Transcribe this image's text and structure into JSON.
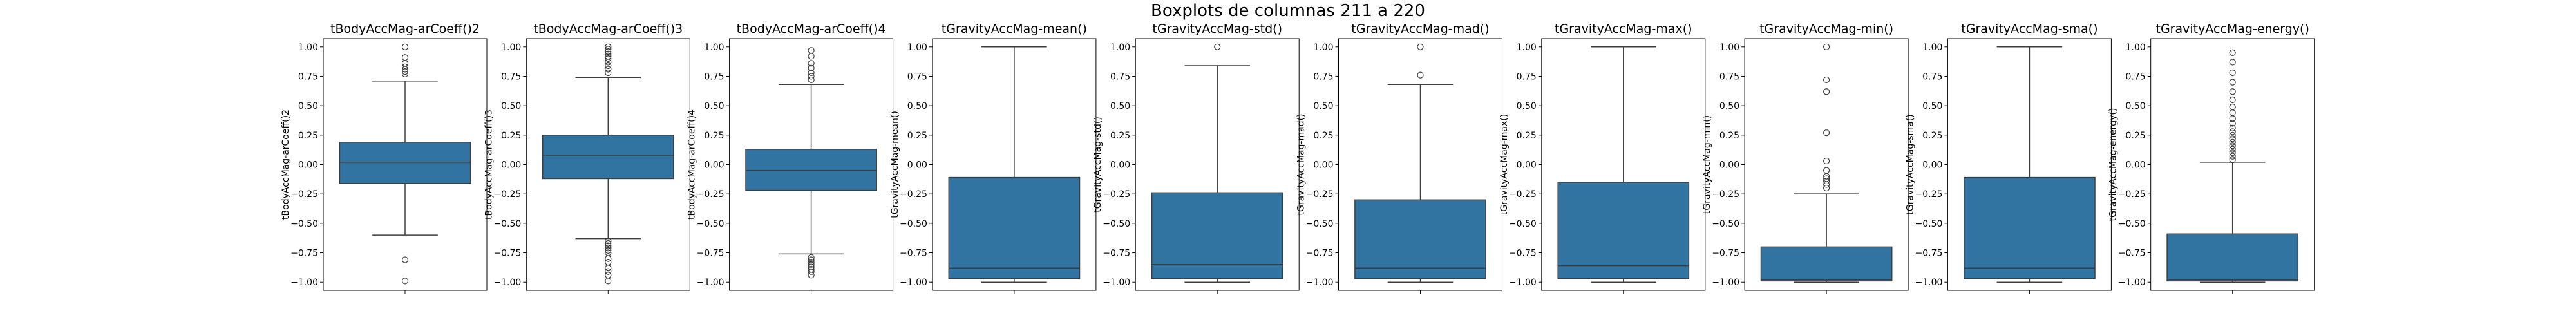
{
  "figure_title": "Boxplots de columnas 211 a 220",
  "colors": {
    "box_fill": "#3274a1",
    "line": "#3d3d3d",
    "frame": "#000000",
    "background": "#ffffff"
  },
  "chart_data": [
    {
      "type": "box",
      "title": "tBodyAccMag-arCoeff()2",
      "ylabel": "tBodyAccMag-arCoeff()2",
      "ylim": [
        -1.07,
        1.07
      ],
      "yticks": [
        -1.0,
        -0.75,
        -0.5,
        -0.25,
        0.0,
        0.25,
        0.5,
        0.75,
        1.0
      ],
      "q1": -0.16,
      "median": 0.02,
      "q3": 0.19,
      "whisker_low": -0.6,
      "whisker_high": 0.71,
      "outliers": [
        -0.81,
        -0.99,
        0.77,
        0.79,
        0.81,
        0.83,
        0.86,
        0.91,
        1.0
      ]
    },
    {
      "type": "box",
      "title": "tBodyAccMag-arCoeff()3",
      "ylabel": "tBodyAccMag-arCoeff()3",
      "ylim": [
        -1.07,
        1.07
      ],
      "yticks": [
        -1.0,
        -0.75,
        -0.5,
        -0.25,
        0.0,
        0.25,
        0.5,
        0.75,
        1.0
      ],
      "q1": -0.12,
      "median": 0.08,
      "q3": 0.25,
      "whisker_low": -0.63,
      "whisker_high": 0.74,
      "outliers": [
        -0.65,
        -0.67,
        -0.69,
        -0.71,
        -0.73,
        -0.75,
        -0.8,
        -0.83,
        -0.88,
        -0.91,
        -0.94,
        -0.99,
        0.78,
        0.81,
        0.84,
        0.87,
        0.9,
        0.92,
        0.94,
        0.96,
        0.98,
        1.0
      ]
    },
    {
      "type": "box",
      "title": "tBodyAccMag-arCoeff()4",
      "ylabel": "tBodyAccMag-arCoeff()4",
      "ylim": [
        -1.07,
        1.07
      ],
      "yticks": [
        -1.0,
        -0.75,
        -0.5,
        -0.25,
        0.0,
        0.25,
        0.5,
        0.75,
        1.0
      ],
      "q1": -0.22,
      "median": -0.05,
      "q3": 0.13,
      "whisker_low": -0.76,
      "whisker_high": 0.68,
      "outliers": [
        -0.79,
        -0.81,
        -0.83,
        -0.85,
        -0.87,
        -0.89,
        -0.91,
        -0.94,
        0.72,
        0.75,
        0.78,
        0.82,
        0.86,
        0.92,
        0.97
      ]
    },
    {
      "type": "box",
      "title": "tGravityAccMag-mean()",
      "ylabel": "tGravityAccMag-mean()",
      "ylim": [
        -1.07,
        1.07
      ],
      "yticks": [
        -1.0,
        -0.75,
        -0.5,
        -0.25,
        0.0,
        0.25,
        0.5,
        0.75,
        1.0
      ],
      "q1": -0.97,
      "median": -0.88,
      "q3": -0.11,
      "whisker_low": -1.0,
      "whisker_high": 1.0,
      "outliers": []
    },
    {
      "type": "box",
      "title": "tGravityAccMag-std()",
      "ylabel": "tGravityAccMag-std()",
      "ylim": [
        -1.07,
        1.07
      ],
      "yticks": [
        -1.0,
        -0.75,
        -0.5,
        -0.25,
        0.0,
        0.25,
        0.5,
        0.75,
        1.0
      ],
      "q1": -0.97,
      "median": -0.85,
      "q3": -0.24,
      "whisker_low": -1.0,
      "whisker_high": 0.84,
      "outliers": [
        1.0
      ]
    },
    {
      "type": "box",
      "title": "tGravityAccMag-mad()",
      "ylabel": "tGravityAccMag-mad()",
      "ylim": [
        -1.07,
        1.07
      ],
      "yticks": [
        -1.0,
        -0.75,
        -0.5,
        -0.25,
        0.0,
        0.25,
        0.5,
        0.75,
        1.0
      ],
      "q1": -0.97,
      "median": -0.88,
      "q3": -0.3,
      "whisker_low": -1.0,
      "whisker_high": 0.68,
      "outliers": [
        0.76,
        1.0
      ]
    },
    {
      "type": "box",
      "title": "tGravityAccMag-max()",
      "ylabel": "tGravityAccMag-max()",
      "ylim": [
        -1.07,
        1.07
      ],
      "yticks": [
        -1.0,
        -0.75,
        -0.5,
        -0.25,
        0.0,
        0.25,
        0.5,
        0.75,
        1.0
      ],
      "q1": -0.97,
      "median": -0.86,
      "q3": -0.15,
      "whisker_low": -1.0,
      "whisker_high": 1.0,
      "outliers": []
    },
    {
      "type": "box",
      "title": "tGravityAccMag-min()",
      "ylabel": "tGravityAccMag-min()",
      "ylim": [
        -1.07,
        1.07
      ],
      "yticks": [
        -1.0,
        -0.75,
        -0.5,
        -0.25,
        0.0,
        0.25,
        0.5,
        0.75,
        1.0
      ],
      "q1": -0.99,
      "median": -0.98,
      "q3": -0.7,
      "whisker_low": -1.0,
      "whisker_high": -0.25,
      "outliers": [
        -0.2,
        -0.17,
        -0.14,
        -0.12,
        -0.1,
        -0.05,
        0.03,
        0.27,
        0.62,
        0.72,
        1.0
      ]
    },
    {
      "type": "box",
      "title": "tGravityAccMag-sma()",
      "ylabel": "tGravityAccMag-sma()",
      "ylim": [
        -1.07,
        1.07
      ],
      "yticks": [
        -1.0,
        -0.75,
        -0.5,
        -0.25,
        0.0,
        0.25,
        0.5,
        0.75,
        1.0
      ],
      "q1": -0.97,
      "median": -0.88,
      "q3": -0.11,
      "whisker_low": -1.0,
      "whisker_high": 1.0,
      "outliers": []
    },
    {
      "type": "box",
      "title": "tGravityAccMag-energy()",
      "ylabel": "tGravityAccMag-energy()",
      "ylim": [
        -1.07,
        1.07
      ],
      "yticks": [
        -1.0,
        -0.75,
        -0.5,
        -0.25,
        0.0,
        0.25,
        0.5,
        0.75,
        1.0
      ],
      "q1": -0.99,
      "median": -0.98,
      "q3": -0.59,
      "whisker_low": -1.0,
      "whisker_high": 0.02,
      "outliers": [
        0.04,
        0.07,
        0.1,
        0.13,
        0.16,
        0.19,
        0.22,
        0.25,
        0.28,
        0.31,
        0.35,
        0.39,
        0.44,
        0.49,
        0.55,
        0.62,
        0.7,
        0.78,
        0.87,
        0.95
      ]
    }
  ]
}
